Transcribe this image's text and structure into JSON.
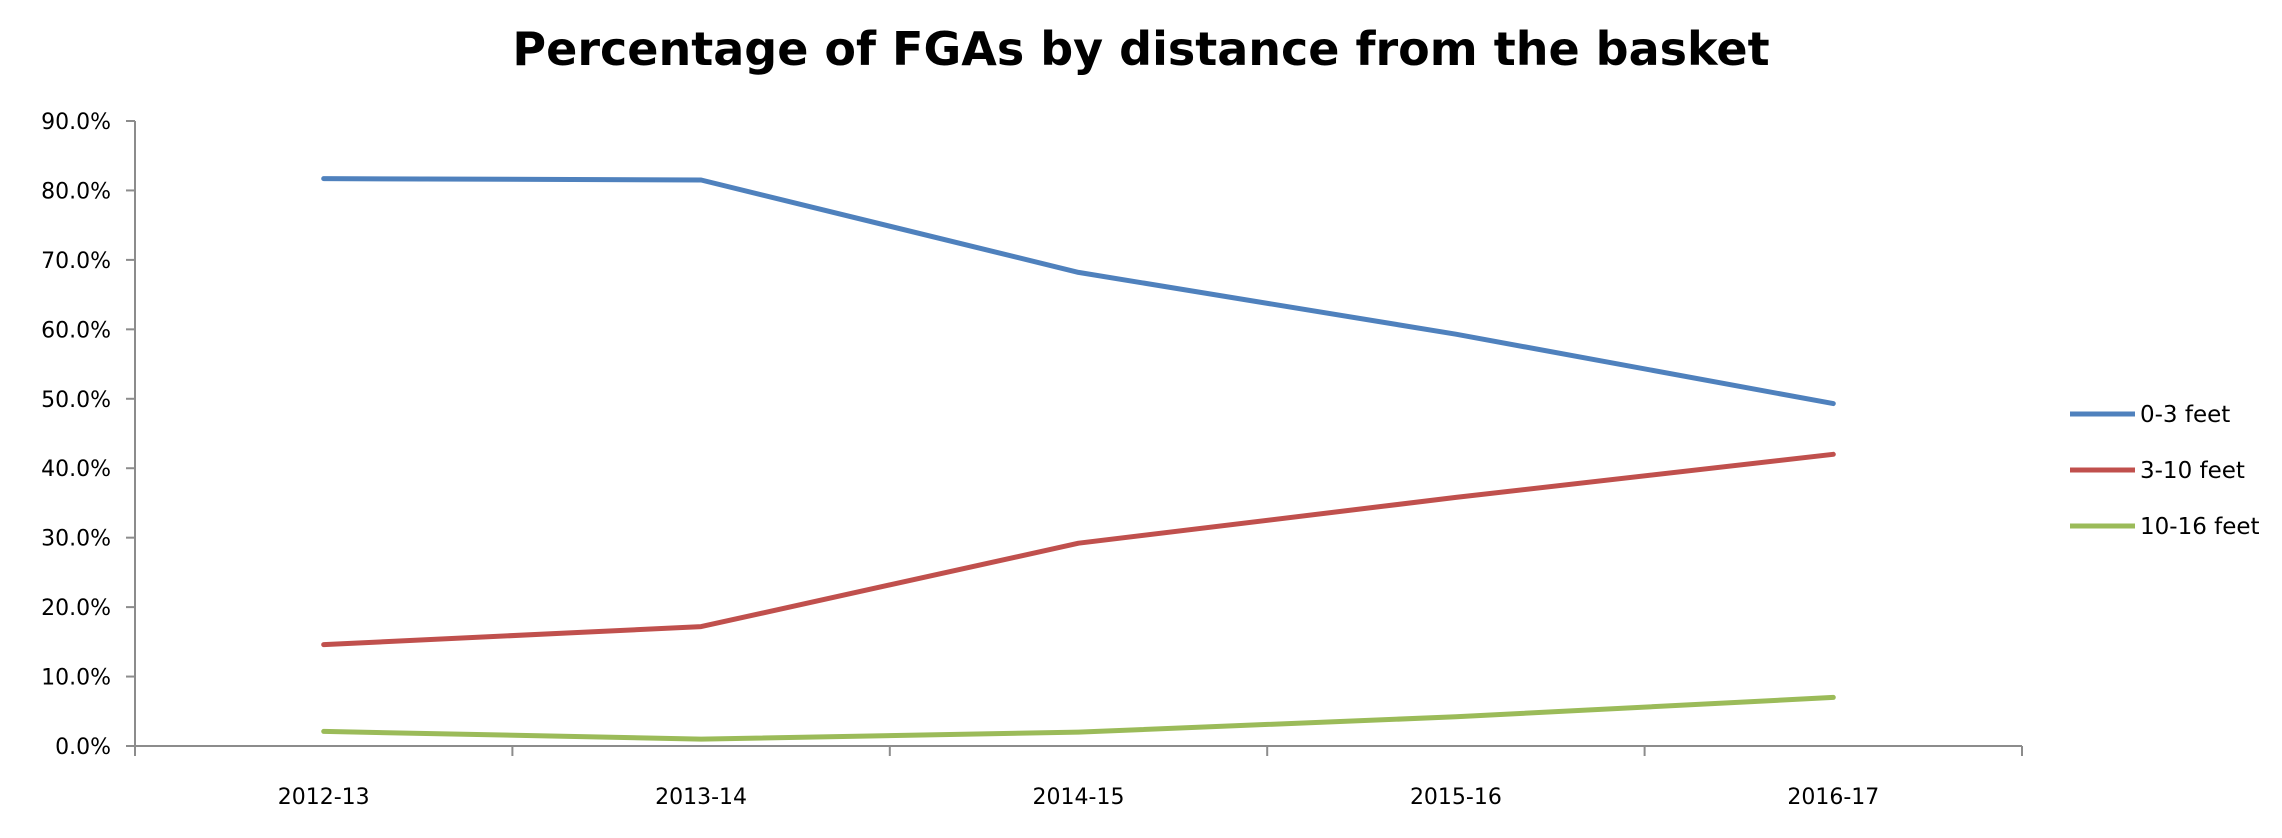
{
  "chart_data": {
    "type": "line",
    "title": "Percentage of FGAs by distance from the basket",
    "xlabel": "",
    "ylabel": "",
    "categories": [
      "2012-13",
      "2013-14",
      "2014-15",
      "2015-16",
      "2016-17"
    ],
    "ylim": [
      0,
      90
    ],
    "y_ticks": [
      "0.0%",
      "10.0%",
      "20.0%",
      "30.0%",
      "40.0%",
      "50.0%",
      "60.0%",
      "70.0%",
      "80.0%",
      "90.0%"
    ],
    "grid": false,
    "legend_position": "right",
    "series": [
      {
        "name": "0-3 feet",
        "color": "#4F81BD",
        "values": [
          81.7,
          81.5,
          68.2,
          59.3,
          49.3
        ]
      },
      {
        "name": "3-10 feet",
        "color": "#C0504D",
        "values": [
          14.6,
          17.2,
          29.2,
          35.8,
          42.0
        ]
      },
      {
        "name": "10-16 feet",
        "color": "#9BBB59",
        "values": [
          2.1,
          1.0,
          2.0,
          4.2,
          7.0
        ]
      }
    ]
  }
}
